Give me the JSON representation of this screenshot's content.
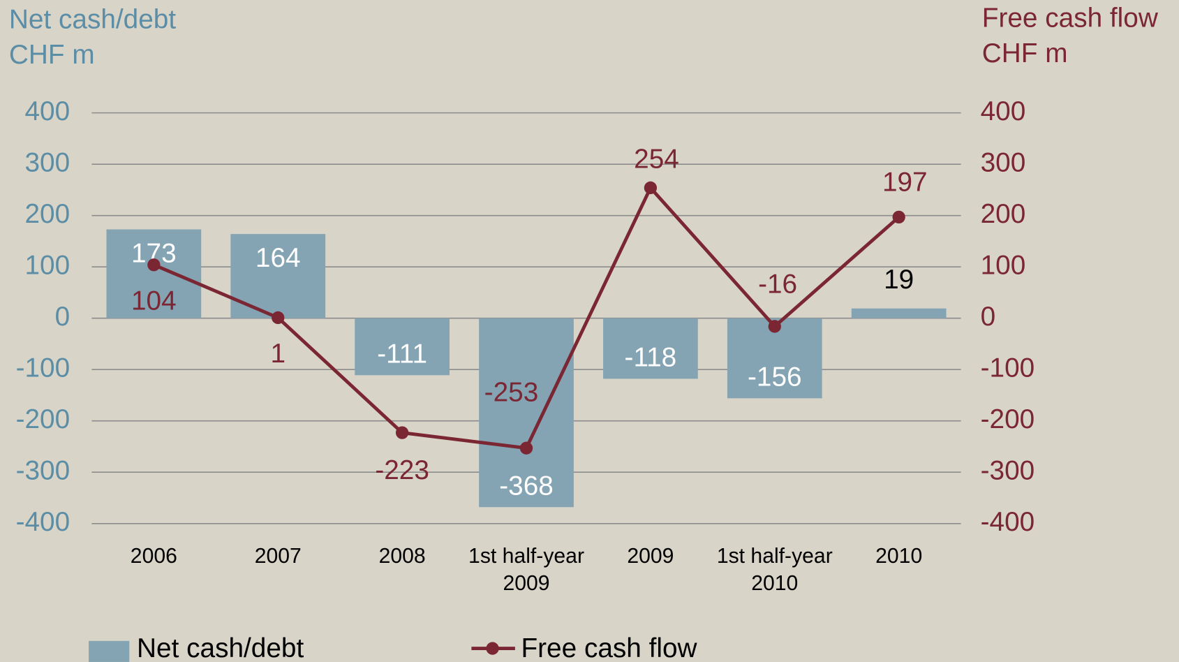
{
  "chart_data": {
    "type": "bar_line",
    "ylabel": [
      "Net cash/debt",
      "CHF m"
    ],
    "y2label": [
      "Free cash flow",
      "CHF m"
    ],
    "categories": [
      "2006",
      "2007",
      "2008",
      "1st half-year 2009",
      "2009",
      "1st half-year 2010",
      "2010"
    ],
    "series": [
      {
        "name": "Net cash/debt",
        "type": "bar",
        "color": "#84a4b4",
        "values": [
          173,
          164,
          -111,
          -368,
          -118,
          -156,
          19
        ]
      },
      {
        "name": "Free cash flow",
        "type": "line",
        "axis": "y2",
        "color": "#7b2633",
        "values": [
          104,
          1,
          -223,
          -253,
          254,
          -16,
          197
        ]
      }
    ],
    "ylim": [
      -400,
      400
    ],
    "yticks": [
      -400,
      -300,
      -200,
      -100,
      0,
      100,
      200,
      300,
      400
    ],
    "y2lim": [
      -400,
      400
    ],
    "y2ticks": [
      -400,
      -300,
      -200,
      -100,
      0,
      100,
      200,
      300,
      400
    ],
    "grid": true,
    "legend": "bottom"
  }
}
